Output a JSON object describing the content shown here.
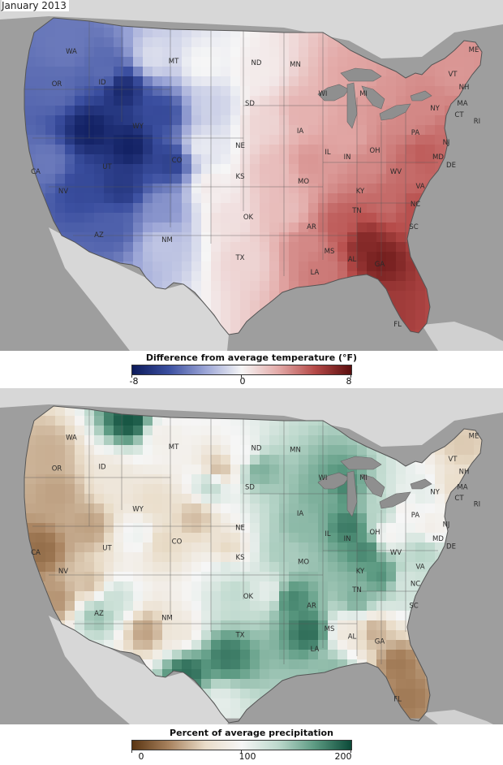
{
  "title": "January 2013",
  "temp_map": {
    "legend_title": "Difference from average temperature (°F)",
    "legend_ticks": [
      "-8",
      "0",
      "8"
    ],
    "scale_colors": [
      "#0c1a5a",
      "#3b4fa0",
      "#9aa4d6",
      "#f6f6f6",
      "#e3aaa8",
      "#b54a48",
      "#5a0d0d"
    ],
    "state_labels": [
      "WA",
      "OR",
      "CA",
      "ID",
      "NV",
      "MT",
      "WY",
      "UT",
      "AZ",
      "CO",
      "NM",
      "ND",
      "SD",
      "NE",
      "KS",
      "OK",
      "TX",
      "MN",
      "IA",
      "MO",
      "AR",
      "LA",
      "WI",
      "IL",
      "MI",
      "IN",
      "OH",
      "KY",
      "TN",
      "MS",
      "AL",
      "GA",
      "FL",
      "SC",
      "NC",
      "VA",
      "WV",
      "PA",
      "NY",
      "MD",
      "NJ",
      "DE",
      "VT",
      "NH",
      "ME",
      "MA",
      "CT",
      "RI"
    ]
  },
  "precip_map": {
    "legend_title": "Percent of average precipitation",
    "legend_ticks": [
      "0",
      "100",
      "200"
    ],
    "scale_colors": [
      "#5a3512",
      "#a8825e",
      "#e9dcc8",
      "#f6f6f6",
      "#bcd8cc",
      "#5c9a82",
      "#0b4a38"
    ],
    "state_labels": [
      "WA",
      "OR",
      "CA",
      "ID",
      "NV",
      "MT",
      "WY",
      "UT",
      "AZ",
      "CO",
      "NM",
      "ND",
      "SD",
      "NE",
      "KS",
      "OK",
      "TX",
      "MN",
      "IA",
      "MO",
      "AR",
      "LA",
      "WI",
      "IL",
      "MI",
      "IN",
      "OH",
      "KY",
      "TN",
      "MS",
      "AL",
      "GA",
      "FL",
      "SC",
      "NC",
      "VA",
      "WV",
      "PA",
      "NY",
      "MD",
      "NJ",
      "DE",
      "VT",
      "NH",
      "ME",
      "MA",
      "CT",
      "RI"
    ]
  }
}
